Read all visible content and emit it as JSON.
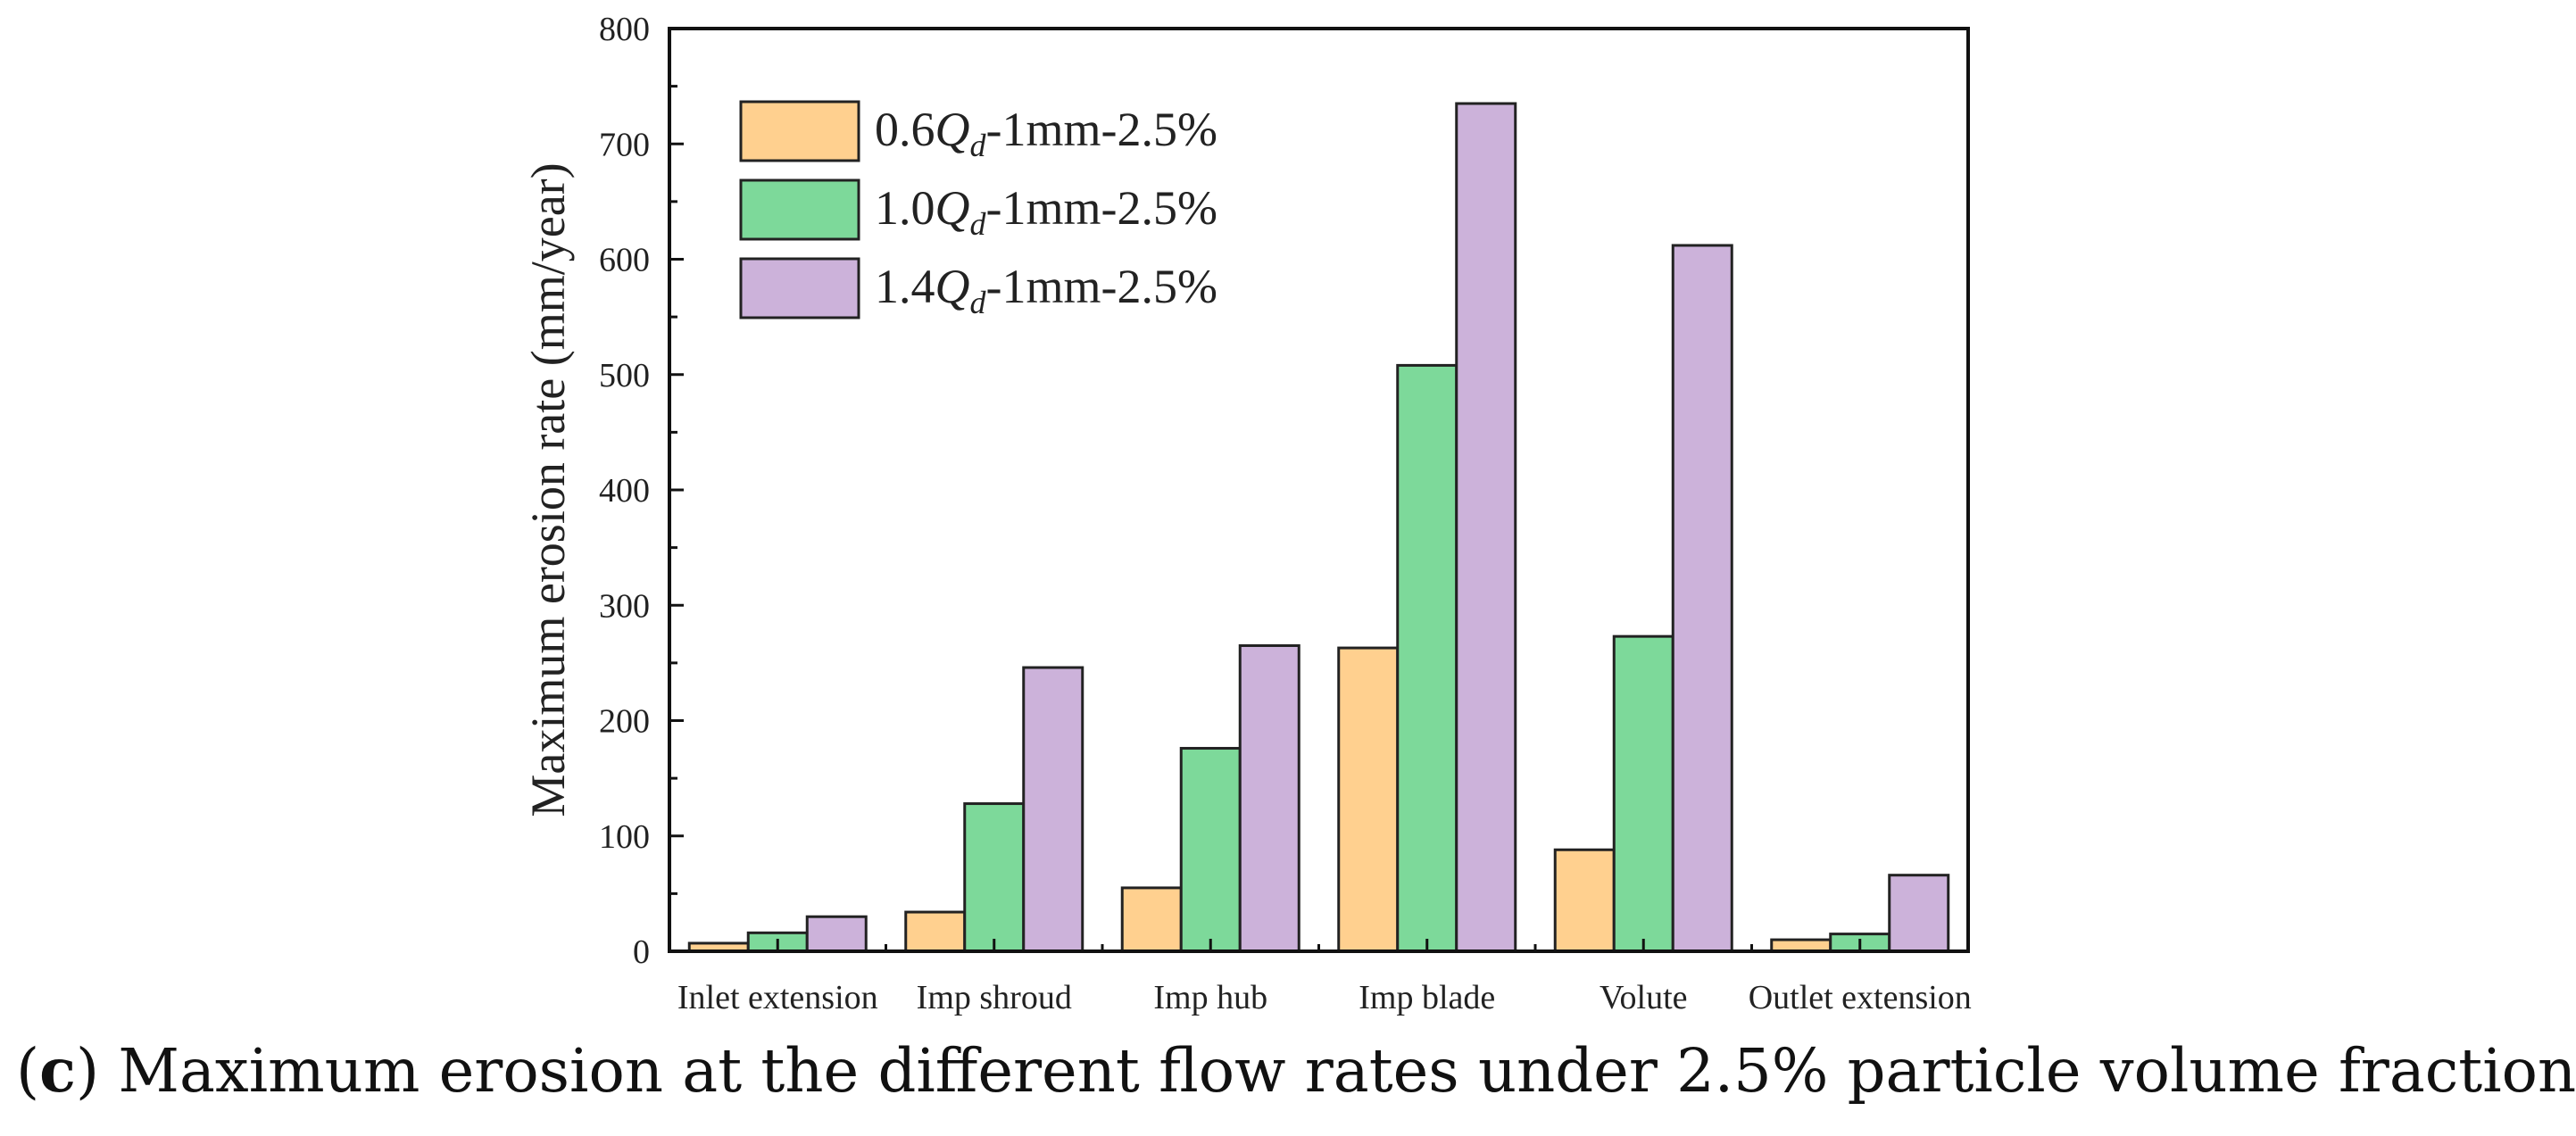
{
  "caption": {
    "label_open": "(",
    "label": "c",
    "label_close": ")",
    "text": " Maximum erosion at the different flow rates under 2.5% particle volume fraction"
  },
  "chart_data": {
    "type": "bar",
    "title": "",
    "xlabel": "",
    "ylabel": "Maximum erosion rate (mm/year)",
    "ylim": [
      0,
      800
    ],
    "yticks": [
      0,
      100,
      200,
      300,
      400,
      500,
      600,
      700,
      800
    ],
    "categories": [
      "Inlet extension",
      "Imp shroud",
      "Imp hub",
      "Imp blade",
      "Volute",
      "Outlet extension"
    ],
    "series": [
      {
        "name": "0.6Qd-1mm-2.5%",
        "legend_prefix": "0.6",
        "legend_symbol": "Q",
        "legend_subscript": "d",
        "legend_suffix": "-1mm-2.5%",
        "color": "#FFD08F",
        "values": [
          7,
          34,
          55,
          263,
          88,
          10
        ]
      },
      {
        "name": "1.0Qd-1mm-2.5%",
        "legend_prefix": "1.0",
        "legend_symbol": "Q",
        "legend_subscript": "d",
        "legend_suffix": "-1mm-2.5%",
        "color": "#7DD99A",
        "values": [
          16,
          128,
          176,
          508,
          273,
          15
        ]
      },
      {
        "name": "1.4Qd-1mm-2.5%",
        "legend_prefix": "1.4",
        "legend_symbol": "Q",
        "legend_subscript": "d",
        "legend_suffix": "-1mm-2.5%",
        "color": "#CCB2DA",
        "values": [
          30,
          246,
          265,
          735,
          612,
          66
        ]
      }
    ],
    "legend_position": "top-left",
    "grid": false
  }
}
